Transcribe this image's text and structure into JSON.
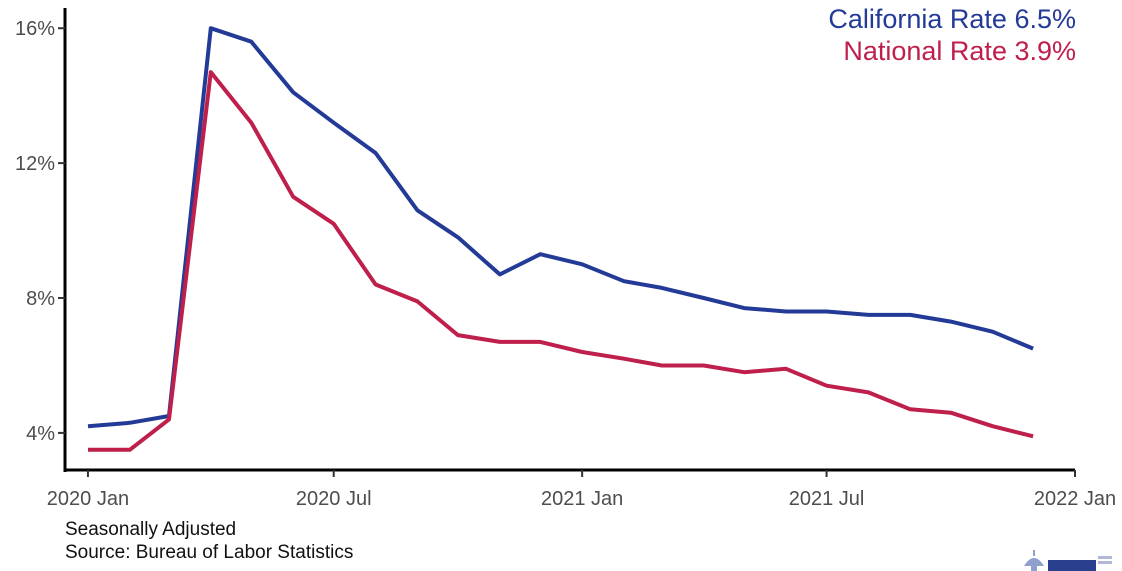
{
  "chart_data": {
    "type": "line",
    "title": "",
    "xlabel": "",
    "ylabel": "",
    "x": [
      "2020-01",
      "2020-02",
      "2020-03",
      "2020-04",
      "2020-05",
      "2020-06",
      "2020-07",
      "2020-08",
      "2020-09",
      "2020-10",
      "2020-11",
      "2020-12",
      "2021-01",
      "2021-02",
      "2021-03",
      "2021-04",
      "2021-05",
      "2021-06",
      "2021-07",
      "2021-08",
      "2021-09",
      "2021-10",
      "2021-11",
      "2021-12"
    ],
    "series": [
      {
        "name": "California Rate 6.5%",
        "color": "#233a96",
        "values": [
          4.2,
          4.3,
          4.5,
          16.0,
          15.6,
          14.1,
          13.2,
          12.3,
          10.6,
          9.8,
          8.7,
          9.3,
          9.0,
          8.5,
          8.3,
          8.0,
          7.7,
          7.6,
          7.6,
          7.5,
          7.5,
          7.3,
          7.0,
          6.5
        ]
      },
      {
        "name": "National Rate 3.9%",
        "color": "#be1f4b",
        "values": [
          3.5,
          3.5,
          4.4,
          14.7,
          13.2,
          11.0,
          10.2,
          8.4,
          7.9,
          6.9,
          6.7,
          6.7,
          6.4,
          6.2,
          6.0,
          6.0,
          5.8,
          5.9,
          5.4,
          5.2,
          4.7,
          4.6,
          4.2,
          3.9
        ]
      }
    ],
    "y_ticks": [
      4,
      8,
      12,
      16
    ],
    "y_tick_labels": [
      "4%",
      "8%",
      "12%",
      "16%"
    ],
    "ylim": [
      2.9,
      16.6
    ],
    "x_ticks": [
      "2020-01",
      "2020-07",
      "2021-01",
      "2021-07",
      "2022-01"
    ],
    "x_tick_labels": [
      "2020 Jan",
      "2020 Jul",
      "2021 Jan",
      "2021 Jul",
      "2022 Jan"
    ],
    "xlim": [
      "2019-12-15",
      "2022-01-01"
    ],
    "grid": false,
    "legend_position": "top-right"
  },
  "notes": {
    "line1": "Seasonally Adjusted",
    "line2": "Source: Bureau of Labor Statistics"
  },
  "logo": {
    "icon": "capitol-dome-logo"
  }
}
